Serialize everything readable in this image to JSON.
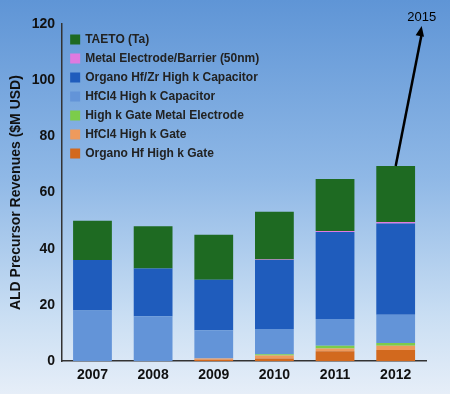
{
  "chart_data": {
    "type": "bar",
    "stacked": true,
    "grid": false,
    "legend": "upper left",
    "y_label": "ALD Precursor Revenues ($M USD)",
    "annotation": "2015",
    "categories": [
      "2007",
      "2008",
      "2009",
      "2010",
      "2011",
      "2012"
    ],
    "ylim": [
      0,
      120
    ],
    "yticks": [
      0,
      20,
      40,
      60,
      80,
      100,
      120
    ],
    "series": [
      {
        "name": "Organo Hf High k Gate",
        "color": "#d2691e",
        "values": [
          0,
          0,
          0.5,
          1,
          3.5,
          4
        ]
      },
      {
        "name": "HfCl4 High k Gate",
        "color": "#ee9a5c",
        "values": [
          0,
          0,
          0.5,
          1,
          1,
          1.5
        ]
      },
      {
        "name": "High k Gate Metal Electrode",
        "color": "#7ccc4a",
        "values": [
          0,
          0,
          0,
          0.5,
          1,
          1
        ]
      },
      {
        "name": "HfCl4 High k Capacitor",
        "color": "#6394d8",
        "values": [
          18,
          16,
          10,
          9,
          9.5,
          10
        ]
      },
      {
        "name": "Organo Hf/Zr High k Capacitor",
        "color": "#1f5cbc",
        "values": [
          18,
          17,
          18,
          24.5,
          31,
          32.5
        ]
      },
      {
        "name": "Metal Electrode/Barrier (50nm)",
        "color": "#e07ae0",
        "values": [
          0,
          0,
          0,
          0.2,
          0.3,
          0.5
        ]
      },
      {
        "name": "TAETO (Ta)",
        "color": "#1e6a22",
        "values": [
          14,
          15,
          16,
          17,
          18.5,
          20
        ]
      }
    ]
  }
}
